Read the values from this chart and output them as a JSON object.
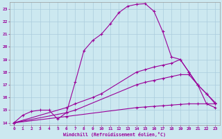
{
  "xlabel": "Windchill (Refroidissement éolien,°C)",
  "bg_color": "#cce8f0",
  "line_color": "#990099",
  "grid_color": "#aaccdd",
  "xlim": [
    -0.5,
    23.5
  ],
  "ylim": [
    13.8,
    23.5
  ],
  "xticks": [
    0,
    1,
    2,
    3,
    4,
    5,
    6,
    7,
    8,
    9,
    10,
    11,
    12,
    13,
    14,
    15,
    16,
    17,
    18,
    19,
    20,
    21,
    22,
    23
  ],
  "yticks": [
    14,
    15,
    16,
    17,
    18,
    19,
    20,
    21,
    22,
    23
  ],
  "line1_x": [
    0,
    1,
    2,
    3,
    4,
    5,
    6,
    7,
    8,
    9,
    10,
    11,
    12,
    13,
    14,
    15,
    16,
    17,
    18,
    19,
    20,
    21,
    22,
    23
  ],
  "line1_y": [
    14.0,
    14.6,
    14.9,
    15.0,
    15.0,
    14.3,
    14.8,
    17.2,
    19.7,
    20.5,
    21.0,
    21.8,
    22.7,
    23.2,
    23.35,
    23.4,
    22.8,
    21.2,
    19.2,
    19.0,
    18.0,
    17.0,
    16.3,
    15.6
  ],
  "line2_x": [
    0,
    6,
    7,
    9,
    10,
    14,
    15,
    16,
    17,
    18,
    19,
    20,
    21,
    22,
    23
  ],
  "line2_y": [
    14.0,
    15.2,
    15.5,
    16.0,
    16.3,
    18.0,
    18.2,
    18.4,
    18.55,
    18.7,
    19.0,
    18.0,
    17.0,
    16.3,
    15.5
  ],
  "line3_x": [
    0,
    6,
    7,
    14,
    15,
    16,
    17,
    18,
    19,
    20,
    21,
    22,
    23
  ],
  "line3_y": [
    14.0,
    14.8,
    15.0,
    17.0,
    17.2,
    17.35,
    17.5,
    17.65,
    17.8,
    17.8,
    17.0,
    15.5,
    15.2
  ],
  "line4_x": [
    0,
    6,
    14,
    15,
    16,
    17,
    18,
    19,
    20,
    21,
    22,
    23
  ],
  "line4_y": [
    14.0,
    14.5,
    15.2,
    15.25,
    15.3,
    15.35,
    15.4,
    15.45,
    15.5,
    15.5,
    15.5,
    15.5
  ]
}
